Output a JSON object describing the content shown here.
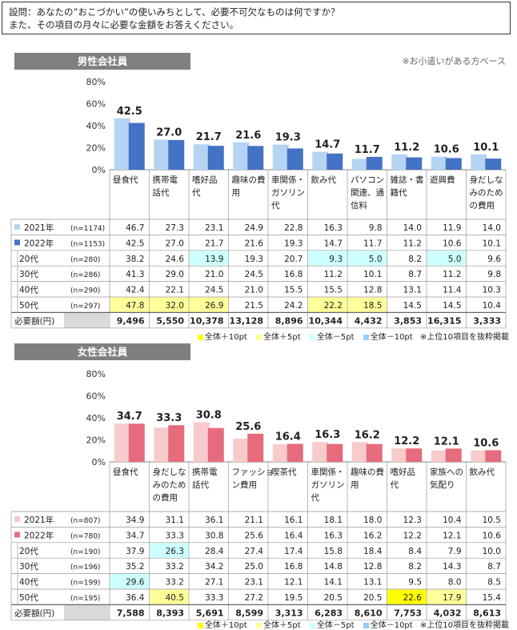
{
  "question": {
    "line1": "設問：あなたの”おこづかい”の使いみちとして、必要不可欠なものは何ですか？",
    "line2": "また、その項目の月々に必要な金額をお答えください。"
  },
  "note": "※お小遣いがある方ベース",
  "legend": {
    "items": [
      {
        "label": "全体＋10pt",
        "color": "#ffff00"
      },
      {
        "label": "全体＋5pt",
        "color": "#ffff99"
      },
      {
        "label": "全体－5pt",
        "color": "#ccffff"
      },
      {
        "label": "全体－10pt",
        "color": "#99ccff"
      }
    ],
    "note": "※上位10項目を抜粋掲載"
  },
  "required_label": "必要額(円)",
  "colors": {
    "male_2021": "#b5d4f4",
    "male_2022": "#4472c4",
    "female_2021": "#f8cbcb",
    "female_2022": "#e66b7d",
    "hl_p10": "#ffff00",
    "hl_p5": "#ffff99",
    "hl_m5": "#ccffff",
    "hl_m10": "#99ccff",
    "header_gray": "#7f7f7f"
  },
  "chart_data": [
    {
      "type": "bar",
      "title": "男性会社員",
      "ylim": [
        0,
        80
      ],
      "yticks": [
        "0%",
        "20%",
        "40%",
        "60%",
        "80%"
      ],
      "categories": [
        "昼食代",
        "携帯電話代",
        "嗜好品代",
        "趣味の費用",
        "車関係・ガソリン代",
        "飲み代",
        "パソコン関連、通信料",
        "雑誌・書籍代",
        "遊興費",
        "身だしなみのための費用"
      ],
      "category_lines": [
        [
          "昼食代"
        ],
        [
          "携帯電",
          "話代"
        ],
        [
          "嗜好品",
          "代"
        ],
        [
          "趣味の費",
          "用"
        ],
        [
          "車関係・",
          "ガソリン",
          "代"
        ],
        [
          "飲み代"
        ],
        [
          "パソコン",
          "関連、通",
          "信料"
        ],
        [
          "雑誌・書",
          "籍代"
        ],
        [
          "遊興費"
        ],
        [
          "身だしな",
          "みのため",
          "の費用"
        ]
      ],
      "bar_labels": [
        "42.5",
        "27.0",
        "21.7",
        "21.6",
        "19.3",
        "14.7",
        "11.7",
        "11.2",
        "10.6",
        "10.1"
      ],
      "series": [
        {
          "name": "2021年",
          "n": "(n=1174)",
          "values": [
            46.7,
            27.3,
            23.1,
            24.9,
            22.8,
            16.3,
            9.8,
            14.0,
            11.9,
            14.0
          ],
          "cells": [
            "46.7",
            "27.3",
            "23.1",
            "24.9",
            "22.8",
            "16.3",
            "9.8",
            "14.0",
            "11.9",
            "14.0"
          ]
        },
        {
          "name": "2022年",
          "n": "(n=1153)",
          "values": [
            42.5,
            27.0,
            21.7,
            21.6,
            19.3,
            14.7,
            11.7,
            11.2,
            10.6,
            10.1
          ],
          "cells": [
            "42.5",
            "27.0",
            "21.7",
            "21.6",
            "19.3",
            "14.7",
            "11.7",
            "11.2",
            "10.6",
            "10.1"
          ]
        }
      ],
      "age_rows": [
        {
          "name": "20代",
          "n": "(n=280)",
          "cells": [
            "38.2",
            "24.6",
            "13.9",
            "19.3",
            "20.7",
            "9.3",
            "5.0",
            "8.2",
            "5.0",
            "9.6"
          ],
          "hl": [
            "",
            "",
            "m5",
            "",
            "",
            "m5",
            "m5",
            "",
            "m5",
            ""
          ]
        },
        {
          "name": "30代",
          "n": "(n=286)",
          "cells": [
            "41.3",
            "29.0",
            "21.0",
            "24.5",
            "16.8",
            "11.2",
            "10.1",
            "8.7",
            "11.2",
            "9.8"
          ],
          "hl": [
            "",
            "",
            "",
            "",
            "",
            "",
            "",
            "",
            "",
            ""
          ]
        },
        {
          "name": "40代",
          "n": "(n=290)",
          "cells": [
            "42.4",
            "22.1",
            "24.5",
            "21.0",
            "15.5",
            "15.5",
            "12.8",
            "13.1",
            "11.4",
            "10.3"
          ],
          "hl": [
            "",
            "",
            "",
            "",
            "",
            "",
            "",
            "",
            "",
            ""
          ]
        },
        {
          "name": "50代",
          "n": "(n=297)",
          "cells": [
            "47.8",
            "32.0",
            "26.9",
            "21.5",
            "24.2",
            "22.2",
            "18.5",
            "14.5",
            "14.5",
            "10.4"
          ],
          "hl": [
            "p5",
            "p5",
            "p5",
            "",
            "",
            "p5",
            "p5",
            "",
            "",
            ""
          ]
        }
      ],
      "required": [
        "9,496",
        "5,550",
        "10,378",
        "13,128",
        "8,896",
        "10,344",
        "4,432",
        "3,853",
        "16,315",
        "3,333"
      ]
    },
    {
      "type": "bar",
      "title": "女性会社員",
      "ylim": [
        0,
        80
      ],
      "yticks": [
        "0%",
        "20%",
        "40%",
        "60%",
        "80%"
      ],
      "categories": [
        "昼食代",
        "身だしなみのための費用",
        "携帯電話代",
        "ファッション費用",
        "喫茶代",
        "車関係・ガソリン代",
        "趣味の費用",
        "嗜好品代",
        "家族への気配り",
        "飲み代"
      ],
      "category_lines": [
        [
          "昼食代"
        ],
        [
          "身だしな",
          "みのため",
          "の費用"
        ],
        [
          "携帯電",
          "話代"
        ],
        [
          "ファッショ",
          "ン費用"
        ],
        [
          "喫茶代"
        ],
        [
          "車関係・",
          "ガソリン",
          "代"
        ],
        [
          "趣味の費",
          "用"
        ],
        [
          "嗜好品",
          "代"
        ],
        [
          "家族への",
          "気配り"
        ],
        [
          "飲み代"
        ]
      ],
      "bar_labels": [
        "34.7",
        "33.3",
        "30.8",
        "25.6",
        "16.4",
        "16.3",
        "16.2",
        "12.2",
        "12.1",
        "10.6"
      ],
      "series": [
        {
          "name": "2021年",
          "n": "(n=807)",
          "values": [
            34.9,
            31.1,
            36.1,
            21.1,
            16.1,
            18.1,
            18.0,
            12.3,
            10.4,
            10.5
          ],
          "cells": [
            "34.9",
            "31.1",
            "36.1",
            "21.1",
            "16.1",
            "18.1",
            "18.0",
            "12.3",
            "10.4",
            "10.5"
          ]
        },
        {
          "name": "2022年",
          "n": "(n=780)",
          "values": [
            34.7,
            33.3,
            30.8,
            25.6,
            16.4,
            16.3,
            16.2,
            12.2,
            12.1,
            10.6
          ],
          "cells": [
            "34.7",
            "33.3",
            "30.8",
            "25.6",
            "16.4",
            "16.3",
            "16.2",
            "12.2",
            "12.1",
            "10.6"
          ]
        }
      ],
      "age_rows": [
        {
          "name": "20代",
          "n": "(n=190)",
          "cells": [
            "37.9",
            "26.3",
            "28.4",
            "27.4",
            "17.4",
            "15.8",
            "18.4",
            "8.4",
            "7.9",
            "10.0"
          ],
          "hl": [
            "",
            "m5",
            "",
            "",
            "",
            "",
            "",
            "",
            "",
            ""
          ]
        },
        {
          "name": "30代",
          "n": "(n=196)",
          "cells": [
            "35.2",
            "33.2",
            "34.2",
            "25.0",
            "16.8",
            "14.8",
            "12.8",
            "8.2",
            "14.3",
            "8.7"
          ],
          "hl": [
            "",
            "",
            "",
            "",
            "",
            "",
            "",
            "",
            "",
            ""
          ]
        },
        {
          "name": "40代",
          "n": "(n=199)",
          "cells": [
            "29.6",
            "33.2",
            "27.1",
            "23.1",
            "12.1",
            "14.1",
            "13.1",
            "9.5",
            "8.0",
            "8.5"
          ],
          "hl": [
            "m5",
            "",
            "",
            "",
            "",
            "",
            "",
            "",
            "",
            ""
          ]
        },
        {
          "name": "50代",
          "n": "(n=195)",
          "cells": [
            "36.4",
            "40.5",
            "33.3",
            "27.2",
            "19.5",
            "20.5",
            "20.5",
            "22.6",
            "17.9",
            "15.4"
          ],
          "hl": [
            "",
            "p5",
            "",
            "",
            "",
            "",
            "",
            "p10",
            "p5",
            ""
          ]
        }
      ],
      "required": [
        "7,588",
        "8,393",
        "5,691",
        "8,599",
        "3,313",
        "6,283",
        "8,610",
        "7,753",
        "4,032",
        "8,613"
      ]
    }
  ]
}
